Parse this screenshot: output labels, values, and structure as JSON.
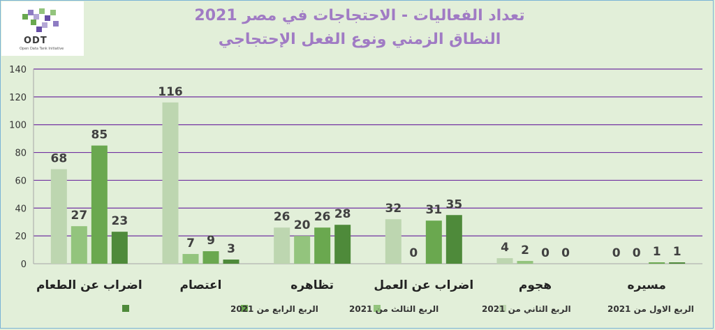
{
  "logo": {
    "text": "ODT",
    "subtitle": "Open Data Tank Initiative"
  },
  "chart_data": {
    "type": "bar",
    "title": "تعداد الفعاليات - الاحتجاجات في مصر 2021",
    "subtitle": "النطاق الزمني ونوع الفعل الإحتجاجي",
    "categories": [
      "اضراب عن الطعام",
      "اعتصام",
      "تظاهره",
      "اضراب عن العمل",
      "هجوم",
      "مسيره"
    ],
    "series": [
      {
        "name": "الربع الاول من 2021",
        "values": [
          68,
          116,
          26,
          32,
          4,
          0
        ],
        "color": "#bdd6b0"
      },
      {
        "name": "الربع الثاني من 2021",
        "values": [
          27,
          7,
          20,
          0,
          2,
          0
        ],
        "color": "#93c47d"
      },
      {
        "name": "الربع الثالث من 2021",
        "values": [
          85,
          9,
          26,
          31,
          0,
          1
        ],
        "color": "#6aa84f"
      },
      {
        "name": "الربع الرابع من 2021",
        "values": [
          23,
          3,
          28,
          35,
          0,
          1
        ],
        "color": "#4e8a3a"
      }
    ],
    "yticks": [
      0,
      20,
      40,
      60,
      80,
      100,
      120,
      140
    ],
    "ylim": [
      0,
      140
    ],
    "grid": true,
    "gridline_color": "#7030a0",
    "legend_position": "bottom",
    "data_label_color": "#404040"
  }
}
